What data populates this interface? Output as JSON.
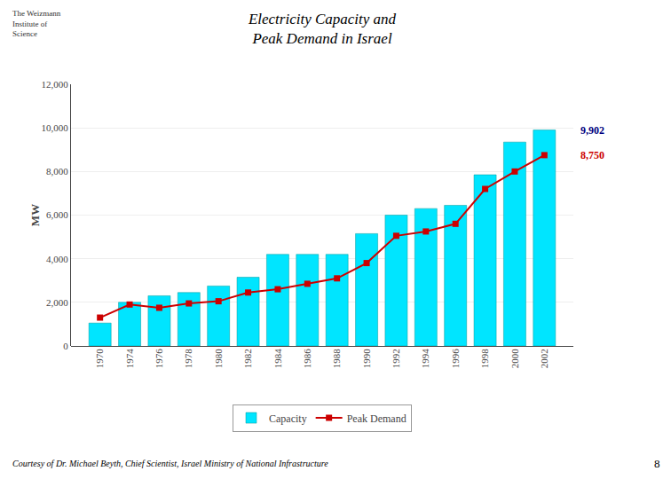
{
  "chart_data": {
    "type": "bar",
    "title": "Electricity Capacity and\nPeak Demand in Israel",
    "categories": [
      "1970",
      "1974",
      "1976",
      "1978",
      "1980",
      "1982",
      "1984",
      "1986",
      "1988",
      "1990",
      "1992",
      "1994",
      "1996",
      "1998",
      "2000",
      "2002"
    ],
    "series": [
      {
        "name": "Capacity",
        "type": "bar",
        "color": "#00E5FF",
        "values": [
          1050,
          2000,
          2300,
          2450,
          2750,
          3150,
          4200,
          4200,
          4200,
          5150,
          6000,
          6300,
          6450,
          7850,
          9350,
          9902
        ]
      },
      {
        "name": "Peak Demand",
        "type": "line",
        "color": "#CC0000",
        "marker": "square",
        "values": [
          1300,
          1900,
          1750,
          1950,
          2050,
          2450,
          2600,
          2850,
          3100,
          3800,
          5050,
          5250,
          5600,
          7200,
          8000,
          8750
        ]
      }
    ],
    "ylabel": "MW",
    "ylim": [
      0,
      12000
    ],
    "yticks": [
      0,
      {
        "value": 2000,
        "label": "2,000"
      },
      {
        "value": 4000,
        "label": "4,000"
      },
      {
        "value": 6000,
        "label": "6,000"
      },
      {
        "value": 8000,
        "label": "8,000"
      },
      {
        "value": 10000,
        "label": "10,000"
      },
      {
        "value": 12000,
        "label": "12,000"
      }
    ],
    "grid": true,
    "legend": "bottom",
    "annotations": [
      {
        "text": "9,902",
        "color": "#000080"
      },
      {
        "text": "8,750",
        "color": "#CC0000"
      },
      {
        "text": "Courtesy of Dr. Michael Beyth, Chief Scientist, Israel Ministry of National Infrastructure"
      },
      {
        "text": "8"
      },
      {
        "text": "The Weizmann\nInstitute of\nScience"
      }
    ]
  }
}
